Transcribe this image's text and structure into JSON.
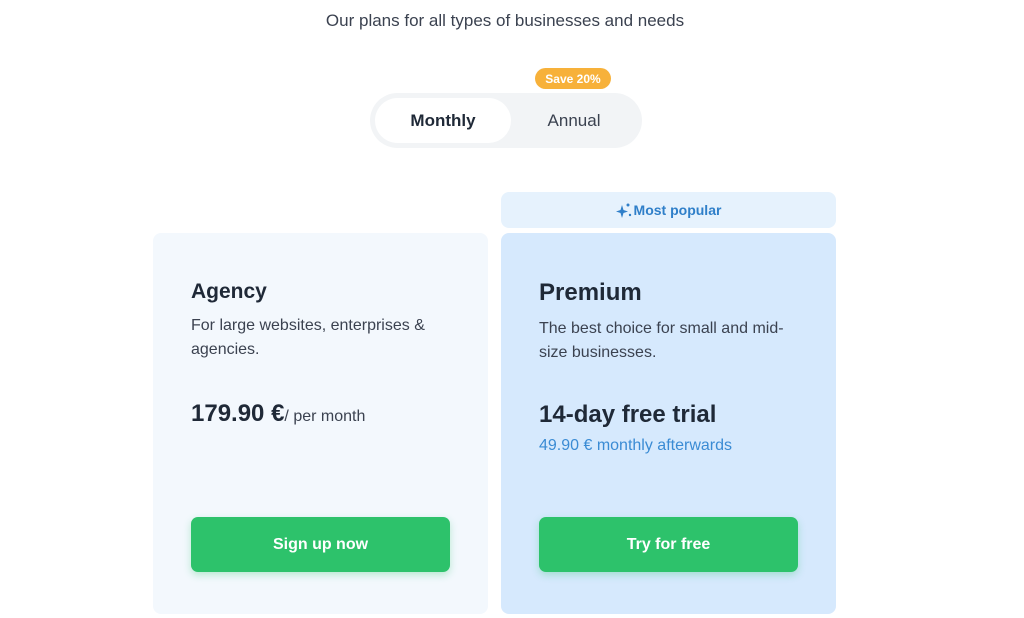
{
  "subtitle": "Our plans for all types of businesses and needs",
  "billing": {
    "monthly": "Monthly",
    "annual": "Annual",
    "selected": "Monthly",
    "save_badge": "Save 20%"
  },
  "popular_banner": {
    "icon": "sparkles-icon",
    "label": "Most popular"
  },
  "plans": [
    {
      "name": "Agency",
      "description": "For large websites, enterprises & agencies.",
      "price": "179.90 €",
      "period": "/ per month",
      "button": "Sign up now"
    },
    {
      "name": "Premium",
      "description": "The best choice for small and mid-size businesses.",
      "trial": "14-day free trial",
      "after": "49.90 € monthly afterwards",
      "button": "Try for free"
    }
  ],
  "colors": {
    "accent_green": "#2dc26b",
    "badge_orange": "#f7b13a",
    "link_blue": "#3a8bd4"
  }
}
